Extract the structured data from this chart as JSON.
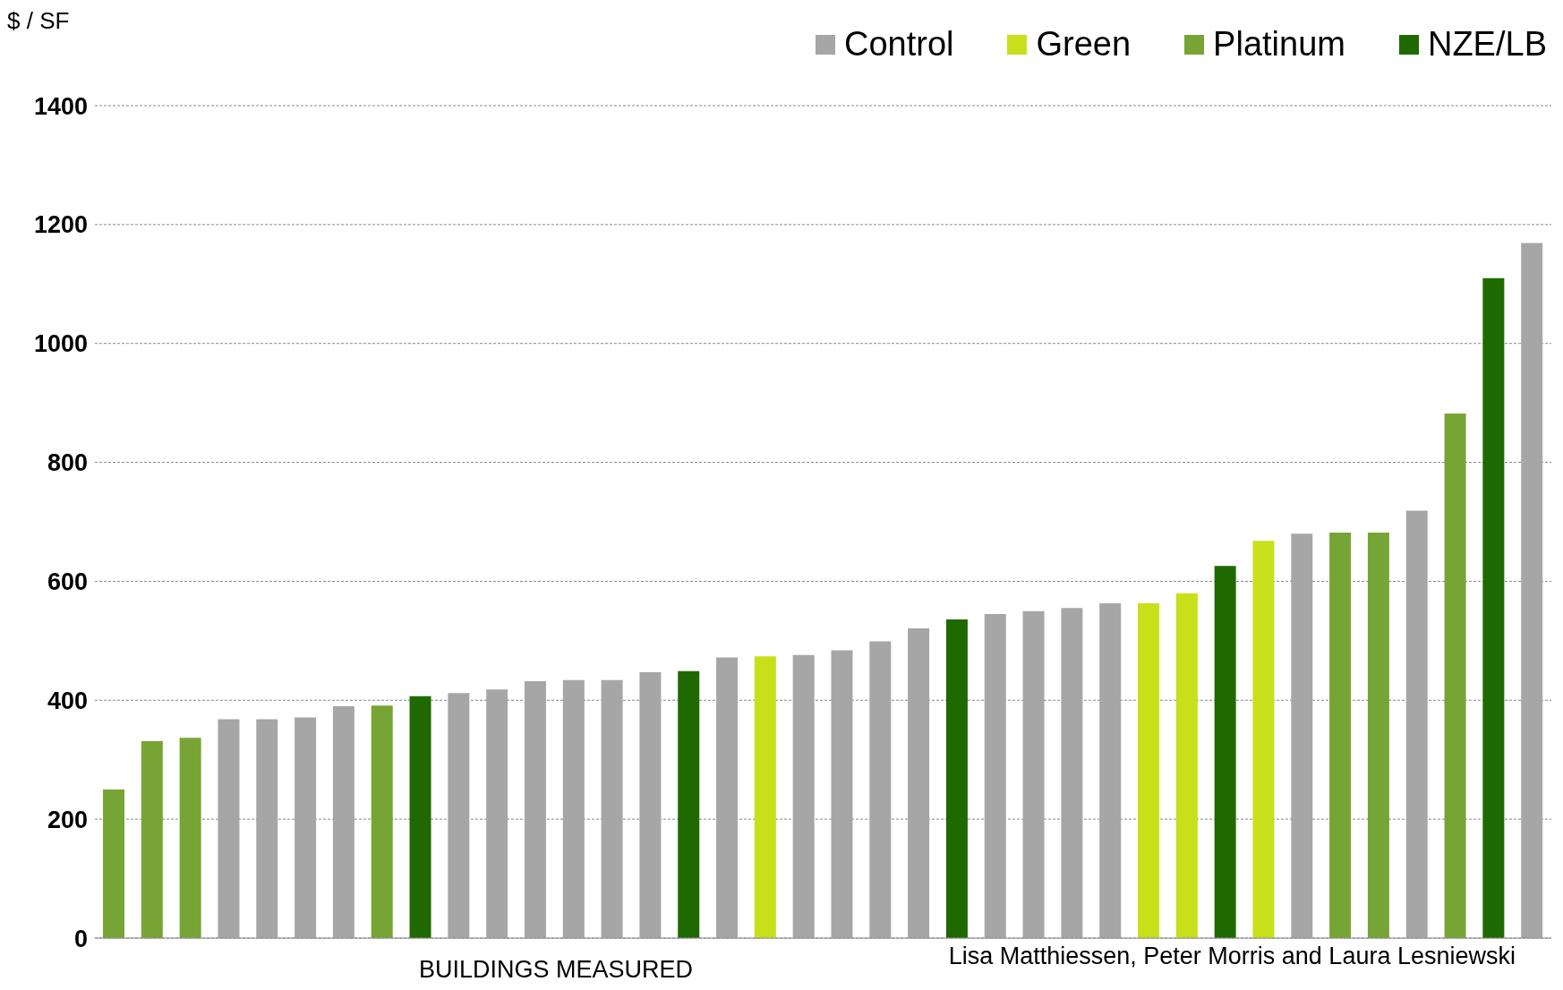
{
  "chart_data": {
    "type": "bar",
    "ylabel": "$ / SF",
    "xlabel": "BUILDINGS MEASURED",
    "annotations": [
      "Lisa Matthiessen, Peter Morris and Laura Lesniewski"
    ],
    "categories": [
      null,
      null,
      null,
      null,
      null,
      null,
      null,
      null,
      null,
      null,
      null,
      null,
      null,
      null,
      null,
      null,
      null,
      null,
      null,
      null,
      null,
      null,
      null,
      null,
      null,
      null,
      null,
      null,
      null,
      null,
      null,
      null,
      null,
      null,
      null,
      null,
      null,
      null
    ],
    "stacked": true,
    "ylim": [
      0,
      1400
    ],
    "yticks": [
      0,
      200,
      400,
      600,
      800,
      1000,
      1200,
      1400
    ],
    "grid": "y",
    "legend": "top right",
    "series": [
      {
        "name": "Control",
        "color": "#a6a6a6",
        "values": [
          null,
          null,
          null,
          368,
          368,
          371,
          390,
          null,
          null,
          412,
          418,
          432,
          434,
          434,
          447,
          null,
          472,
          null,
          476,
          484,
          499,
          521,
          null,
          545,
          550,
          555,
          563,
          null,
          null,
          null,
          null,
          680,
          null,
          null,
          719,
          null,
          null,
          1169
        ]
      },
      {
        "name": "Green",
        "color": "#c8e01a",
        "values": [
          null,
          null,
          null,
          null,
          null,
          null,
          null,
          null,
          null,
          null,
          null,
          null,
          null,
          null,
          null,
          null,
          null,
          474,
          null,
          null,
          null,
          null,
          null,
          null,
          null,
          null,
          null,
          563,
          580,
          null,
          668,
          null,
          null,
          null,
          null,
          null,
          null,
          null
        ]
      },
      {
        "name": "Platinum",
        "color": "#77a535",
        "values": [
          250,
          331,
          337,
          null,
          null,
          null,
          null,
          391,
          null,
          null,
          null,
          null,
          null,
          null,
          null,
          null,
          null,
          null,
          null,
          null,
          null,
          null,
          null,
          null,
          null,
          null,
          null,
          null,
          null,
          null,
          null,
          null,
          682,
          682,
          null,
          882,
          null,
          null
        ]
      },
      {
        "name": "NZE/LB",
        "color": "#1f6a00",
        "values": [
          null,
          null,
          null,
          null,
          null,
          null,
          null,
          null,
          407,
          null,
          null,
          null,
          null,
          null,
          null,
          449,
          null,
          null,
          null,
          null,
          null,
          null,
          536,
          null,
          null,
          null,
          null,
          null,
          null,
          626,
          null,
          null,
          null,
          null,
          null,
          null,
          1110,
          null
        ]
      }
    ]
  }
}
